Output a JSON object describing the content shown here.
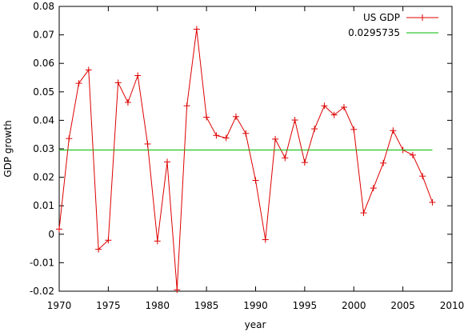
{
  "chart_data": {
    "type": "line",
    "xlabel": "year",
    "ylabel": "GDP growth",
    "xlim": [
      1970,
      2010
    ],
    "ylim": [
      -0.02,
      0.08
    ],
    "x_ticks": [
      1970,
      1975,
      1980,
      1985,
      1990,
      1995,
      2000,
      2005,
      2010
    ],
    "y_ticks": [
      -0.02,
      -0.01,
      0,
      0.01,
      0.02,
      0.03,
      0.04,
      0.05,
      0.06,
      0.07,
      0.08
    ],
    "x_tick_labels": [
      "1970",
      "1975",
      "1980",
      "1985",
      "1990",
      "1995",
      "2000",
      "2005",
      "2010"
    ],
    "y_tick_labels": [
      "-0.02",
      "-0.01",
      "0",
      "0.01",
      "0.02",
      "0.03",
      "0.04",
      "0.05",
      "0.06",
      "0.07",
      "0.08"
    ],
    "grid": false,
    "legend_position": "top-right",
    "series": [
      {
        "name": "US GDP",
        "color": "#dd0000",
        "marker": "plus",
        "x": [
          1970,
          1971,
          1972,
          1973,
          1974,
          1975,
          1976,
          1977,
          1978,
          1979,
          1980,
          1981,
          1982,
          1983,
          1984,
          1985,
          1986,
          1987,
          1988,
          1989,
          1990,
          1991,
          1992,
          1993,
          1994,
          1995,
          1996,
          1997,
          1998,
          1999,
          2000,
          2001,
          2002,
          2003,
          2004,
          2005,
          2006,
          2007,
          2008
        ],
        "y": [
          0.0018,
          0.0336,
          0.053,
          0.0577,
          -0.0053,
          -0.0021,
          0.0532,
          0.0463,
          0.0557,
          0.0317,
          -0.0024,
          0.0254,
          -0.0195,
          0.0451,
          0.072,
          0.0411,
          0.0347,
          0.0338,
          0.0413,
          0.0354,
          0.0189,
          -0.0019,
          0.0334,
          0.0268,
          0.0401,
          0.0252,
          0.037,
          0.0451,
          0.0419,
          0.0446,
          0.0368,
          0.0075,
          0.0162,
          0.025,
          0.0364,
          0.0296,
          0.0278,
          0.0204,
          0.0112
        ]
      },
      {
        "name": "0.0295735",
        "color": "#00bb00",
        "marker": "none",
        "x": [
          1970,
          2008
        ],
        "y": [
          0.0295735,
          0.0295735
        ]
      }
    ]
  }
}
